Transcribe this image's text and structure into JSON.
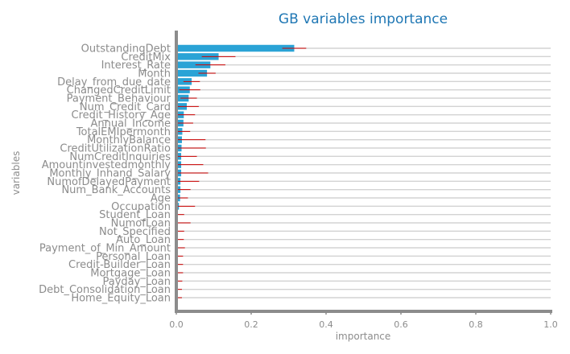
{
  "chart_data": {
    "type": "bar",
    "orientation": "horizontal",
    "title": "GB variables importance",
    "xlabel": "importance",
    "ylabel": "variables",
    "xlim": [
      0,
      1.0
    ],
    "xticks": [
      "0.0",
      "0.2",
      "0.4",
      "0.6",
      "0.8",
      "1.0"
    ],
    "grid": "horizontal lines",
    "colors": {
      "bar": "#2aa3d6",
      "error": "#cc0000",
      "title": "#1f77b4",
      "axis": "#8c8c8c",
      "grid": "#d3d3d3"
    },
    "categories": [
      "OutstandingDebt",
      "CreditMix",
      "Interest_Rate",
      "Month",
      "Delay_from_due_date",
      "ChangedCreditLimit",
      "Payment_Behaviour",
      "Num_Credit_Card",
      "Credit_History_Age",
      "Annual_Income",
      "TotalEMIpermonth",
      "MonthlyBalance",
      "CreditUtilizationRatio",
      "NumCreditInquiries",
      "Amountinvestedmonthly",
      "Monthly_Inhand_Salary",
      "NumofDelayedPayment",
      "Num_Bank_Accounts",
      "Age",
      "Occupation",
      "Student_Loan",
      "NumofLoan",
      "Not_Specified",
      "Auto_Loan",
      "Payment_of_Min_Amount",
      "Personal_Loan",
      "Credit-Builder_Loan",
      "Mortgage_Loan",
      "Payday_Loan",
      "Debt_Consolidation_Loan",
      "Home_Equity_Loan"
    ],
    "values": [
      0.315,
      0.113,
      0.091,
      0.082,
      0.041,
      0.036,
      0.033,
      0.028,
      0.02,
      0.019,
      0.016,
      0.015,
      0.014,
      0.013,
      0.013,
      0.013,
      0.011,
      0.011,
      0.01,
      0.007,
      0.004,
      0.004,
      0.004,
      0.004,
      0.003,
      0.003,
      0.002,
      0.002,
      0.002,
      0.002,
      0.002
    ],
    "error": [
      0.032,
      0.045,
      0.04,
      0.023,
      0.022,
      0.028,
      0.022,
      0.032,
      0.03,
      0.026,
      0.021,
      0.063,
      0.065,
      0.042,
      0.059,
      0.072,
      0.05,
      0.027,
      0.021,
      0.043,
      0.017,
      0.034,
      0.017,
      0.016,
      0.02,
      0.015,
      0.016,
      0.016,
      0.014,
      0.013,
      0.013
    ]
  }
}
